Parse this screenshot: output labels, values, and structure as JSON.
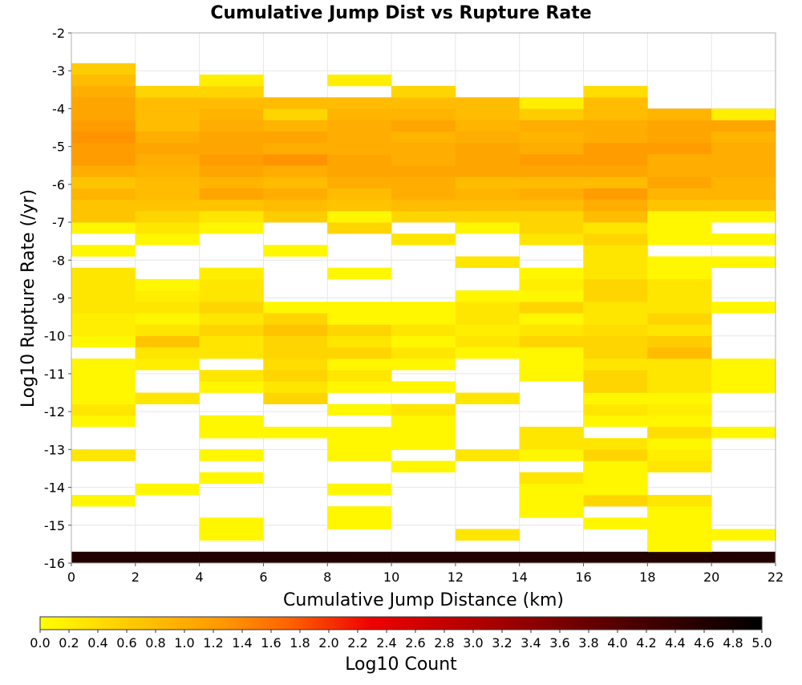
{
  "chart_data": {
    "type": "heatmap",
    "title": "Cumulative Jump Dist vs Rupture Rate",
    "xlabel": "Cumulative Jump Distance (km)",
    "ylabel": "Log10 Rupture Rate (/yr)",
    "xlim": [
      0,
      22
    ],
    "ylim": [
      -16,
      -2
    ],
    "x_bin_width": 2,
    "y_bin_width": 0.3,
    "x_ticks": [
      "0",
      "2",
      "4",
      "6",
      "8",
      "10",
      "12",
      "14",
      "16",
      "18",
      "20",
      "22"
    ],
    "y_ticks": [
      "-2",
      "-3",
      "-4",
      "-5",
      "-6",
      "-7",
      "-8",
      "-9",
      "-10",
      "-11",
      "-12",
      "-13",
      "-14",
      "-15",
      "-16"
    ],
    "colorbar": {
      "label": "Log10 Count",
      "range": [
        0.0,
        5.0
      ],
      "ticks": [
        "0.0",
        "0.2",
        "0.4",
        "0.6",
        "0.8",
        "1.0",
        "1.2",
        "1.4",
        "1.6",
        "1.8",
        "2.0",
        "2.2",
        "2.4",
        "2.6",
        "2.8",
        "3.0",
        "3.2",
        "3.4",
        "3.6",
        "3.8",
        "4.0",
        "4.2",
        "4.4",
        "4.6",
        "4.8",
        "5.0"
      ],
      "colors": [
        "#ffff00",
        "#ffcc00",
        "#ff9900",
        "#ff6600",
        "#ee0000",
        "#aa0000",
        "#550000",
        "#000000"
      ]
    },
    "grid": true,
    "legend": "colorbar-bottom",
    "bin_x_starts": [
      0,
      2,
      4,
      6,
      8,
      10,
      12,
      14,
      16,
      18,
      20
    ],
    "bin_y_starts": [
      -16.0,
      -15.7,
      -15.4,
      -15.1,
      -14.8,
      -14.5,
      -14.2,
      -13.9,
      -13.6,
      -13.3,
      -13.0,
      -12.7,
      -12.4,
      -12.1,
      -11.8,
      -11.5,
      -11.2,
      -10.9,
      -10.6,
      -10.3,
      -10.0,
      -9.7,
      -9.4,
      -9.1,
      -8.8,
      -8.5,
      -8.2,
      -7.9,
      -7.6,
      -7.3,
      -7.0,
      -6.7,
      -6.4,
      -6.1,
      -5.8,
      -5.5,
      -5.2,
      -4.9,
      -4.6,
      -4.3,
      -4.0,
      -3.7,
      -3.4,
      -3.1
    ],
    "values": [
      [
        4.6,
        4.6,
        4.6,
        4.6,
        4.6,
        4.6,
        4.6,
        4.6,
        4.6,
        4.6,
        4.6
      ],
      [
        null,
        null,
        null,
        null,
        null,
        null,
        null,
        null,
        null,
        0.1,
        null
      ],
      [
        null,
        null,
        0.1,
        null,
        null,
        null,
        0.3,
        null,
        null,
        0.1,
        0.1
      ],
      [
        null,
        null,
        0.1,
        null,
        0.1,
        null,
        null,
        null,
        0.1,
        0.1,
        null
      ],
      [
        null,
        null,
        null,
        null,
        0.1,
        null,
        null,
        0.1,
        null,
        0.1,
        null
      ],
      [
        0.1,
        null,
        null,
        null,
        null,
        null,
        null,
        0.1,
        0.5,
        0.3,
        null
      ],
      [
        null,
        0.1,
        null,
        null,
        0.1,
        null,
        null,
        0.1,
        0.1,
        null,
        null
      ],
      [
        null,
        null,
        0.1,
        null,
        null,
        null,
        null,
        0.3,
        0.1,
        null,
        null
      ],
      [
        null,
        null,
        null,
        null,
        null,
        0.1,
        null,
        null,
        0.1,
        0.3,
        null
      ],
      [
        0.3,
        null,
        0.1,
        null,
        0.1,
        null,
        0.3,
        0.1,
        0.5,
        0.2,
        null
      ],
      [
        null,
        null,
        null,
        null,
        0.1,
        0.1,
        null,
        0.3,
        0.3,
        0.1,
        null
      ],
      [
        null,
        null,
        0.1,
        0.1,
        0.1,
        0.1,
        null,
        0.3,
        null,
        0.4,
        0.1
      ],
      [
        0.1,
        null,
        0.1,
        null,
        null,
        0.1,
        null,
        null,
        0.1,
        0.1,
        null
      ],
      [
        0.3,
        null,
        null,
        null,
        0.1,
        0.3,
        null,
        null,
        0.3,
        0.2,
        null
      ],
      [
        0.1,
        0.3,
        null,
        0.5,
        null,
        null,
        0.3,
        null,
        0.1,
        0.1,
        null
      ],
      [
        0.1,
        null,
        0.1,
        0.3,
        0.1,
        0.1,
        null,
        null,
        0.5,
        0.3,
        0.1
      ],
      [
        0.1,
        null,
        0.3,
        0.5,
        0.3,
        null,
        null,
        0.1,
        0.5,
        0.3,
        0.1
      ],
      [
        0.1,
        0.2,
        null,
        0.4,
        0.1,
        0.1,
        null,
        0.1,
        0.3,
        0.3,
        0.1
      ],
      [
        null,
        0.3,
        0.3,
        0.5,
        0.5,
        0.3,
        0.1,
        0.1,
        0.5,
        0.8,
        null
      ],
      [
        0.1,
        0.7,
        0.3,
        0.5,
        0.3,
        0.1,
        0.3,
        0.5,
        0.5,
        0.6,
        null
      ],
      [
        0.2,
        0.3,
        0.5,
        0.7,
        0.5,
        0.3,
        0.2,
        0.3,
        0.4,
        0.3,
        null
      ],
      [
        0.2,
        0.1,
        0.3,
        0.5,
        0.1,
        0.1,
        0.3,
        0.1,
        0.3,
        0.5,
        null
      ],
      [
        0.3,
        0.3,
        0.5,
        0.1,
        0.1,
        0.1,
        0.3,
        0.5,
        0.3,
        0.3,
        0.1
      ],
      [
        0.3,
        0.2,
        0.3,
        null,
        null,
        null,
        0.1,
        0.1,
        0.5,
        0.3,
        null
      ],
      [
        0.3,
        0.1,
        0.3,
        null,
        null,
        null,
        null,
        0.2,
        0.5,
        0.3,
        null
      ],
      [
        0.3,
        null,
        0.2,
        null,
        0.1,
        null,
        null,
        0.1,
        0.3,
        0.1,
        null
      ],
      [
        null,
        null,
        null,
        null,
        null,
        null,
        0.3,
        null,
        0.3,
        0.1,
        0.1
      ],
      [
        0.1,
        null,
        null,
        0.1,
        null,
        null,
        null,
        null,
        0.3,
        null,
        null
      ],
      [
        null,
        0.1,
        null,
        null,
        null,
        0.3,
        null,
        0.3,
        0.5,
        0.1,
        0.1
      ],
      [
        0.1,
        0.3,
        0.1,
        null,
        0.5,
        null,
        0.1,
        0.5,
        0.3,
        0.1,
        null
      ],
      [
        0.7,
        0.5,
        0.3,
        0.6,
        0.1,
        0.5,
        0.5,
        0.5,
        0.8,
        0.1,
        0.1
      ],
      [
        0.7,
        0.7,
        0.7,
        0.8,
        0.7,
        0.8,
        0.8,
        0.8,
        1.0,
        0.7,
        0.7
      ],
      [
        0.9,
        0.8,
        1.1,
        1.0,
        0.8,
        1.0,
        0.9,
        1.0,
        1.2,
        0.9,
        0.9
      ],
      [
        0.7,
        0.8,
        0.9,
        0.8,
        1.0,
        1.0,
        0.8,
        0.8,
        0.8,
        1.1,
        0.9
      ],
      [
        1.0,
        0.9,
        1.1,
        1.0,
        1.1,
        1.1,
        1.1,
        1.1,
        1.1,
        1.0,
        1.0
      ],
      [
        1.2,
        1.0,
        1.2,
        1.3,
        1.1,
        1.0,
        1.1,
        1.2,
        1.2,
        1.0,
        1.0
      ],
      [
        1.2,
        1.1,
        1.1,
        1.0,
        1.0,
        1.0,
        1.1,
        1.0,
        1.2,
        1.2,
        1.0
      ],
      [
        1.3,
        1.0,
        1.1,
        1.1,
        1.0,
        0.9,
        1.0,
        0.9,
        1.0,
        1.1,
        0.9
      ],
      [
        1.2,
        0.8,
        1.0,
        0.9,
        1.0,
        1.1,
        0.9,
        1.0,
        1.0,
        1.1,
        1.1
      ],
      [
        1.1,
        0.8,
        0.9,
        0.5,
        0.9,
        0.9,
        0.8,
        0.6,
        0.8,
        0.9,
        0.2
      ],
      [
        1.1,
        0.8,
        0.8,
        0.8,
        0.8,
        0.8,
        0.8,
        0.2,
        0.8,
        null,
        null
      ],
      [
        1.0,
        0.5,
        0.5,
        null,
        null,
        0.5,
        null,
        null,
        0.4,
        null,
        null
      ],
      [
        0.8,
        null,
        0.2,
        null,
        0.2,
        null,
        null,
        null,
        null,
        null,
        null
      ],
      [
        0.6,
        null,
        null,
        null,
        null,
        null,
        null,
        null,
        null,
        null,
        null
      ]
    ]
  }
}
